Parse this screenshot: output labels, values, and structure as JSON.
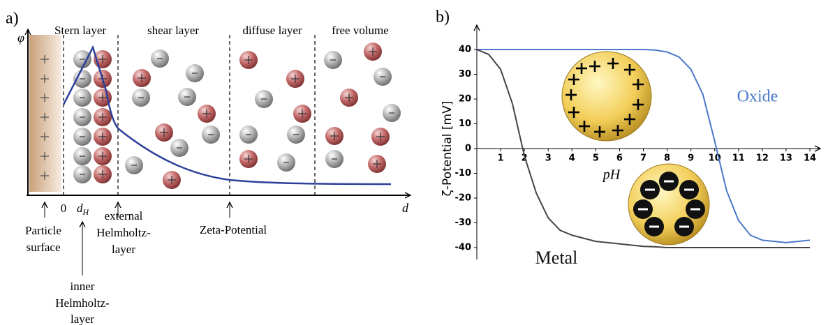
{
  "panel_a": {
    "label": "a)",
    "axis_y": "φ",
    "axis_x": "d",
    "layers": [
      "Stern layer",
      "shear layer",
      "diffuse layer",
      "free volume"
    ],
    "origin": "0",
    "dh": {
      "main": "d",
      "sub": "H"
    },
    "annotations": {
      "particle_surface": [
        "Particle",
        "surface"
      ],
      "inner": [
        "inner",
        "Helmholtz-",
        "layer"
      ],
      "external": [
        "external",
        "Helmholtz-",
        "layer"
      ],
      "zeta": "Zeta-Potential"
    }
  },
  "chart_data": {
    "type": "line",
    "panel_label": "b)",
    "y_label": "ζ-Potential [mV]",
    "x_label": "pH",
    "x": [
      0,
      0.5,
      1,
      1.5,
      2,
      2.5,
      3,
      3.5,
      4,
      5,
      6,
      7,
      7.5,
      8,
      8.5,
      9,
      9.5,
      10,
      10.5,
      11,
      11.5,
      12,
      13,
      14
    ],
    "series": [
      {
        "name": "Oxide",
        "color": "#4a78c8",
        "values": [
          40,
          40,
          40,
          40,
          40,
          40,
          40,
          40,
          40,
          40,
          40,
          40,
          39.8,
          39,
          37,
          32,
          22,
          3,
          -17,
          -29,
          -35,
          -37,
          -38,
          -37
        ]
      },
      {
        "name": "Metal",
        "color": "#444444",
        "values": [
          40,
          38,
          32,
          18,
          -3,
          -18,
          -28,
          -33,
          -35,
          -37.5,
          -38.5,
          -39.5,
          -39.7,
          -40,
          -40,
          -40,
          -40,
          -40,
          -40,
          -40,
          -40,
          -40,
          -40,
          -40
        ]
      }
    ],
    "xlim": [
      0,
      14
    ],
    "ylim": [
      -40,
      40
    ],
    "xticks": [
      1,
      2,
      3,
      4,
      5,
      6,
      7,
      8,
      9,
      10,
      11,
      12,
      13,
      14
    ],
    "yticks": [
      -40,
      -30,
      -20,
      -10,
      0,
      10,
      20,
      30,
      40
    ]
  }
}
